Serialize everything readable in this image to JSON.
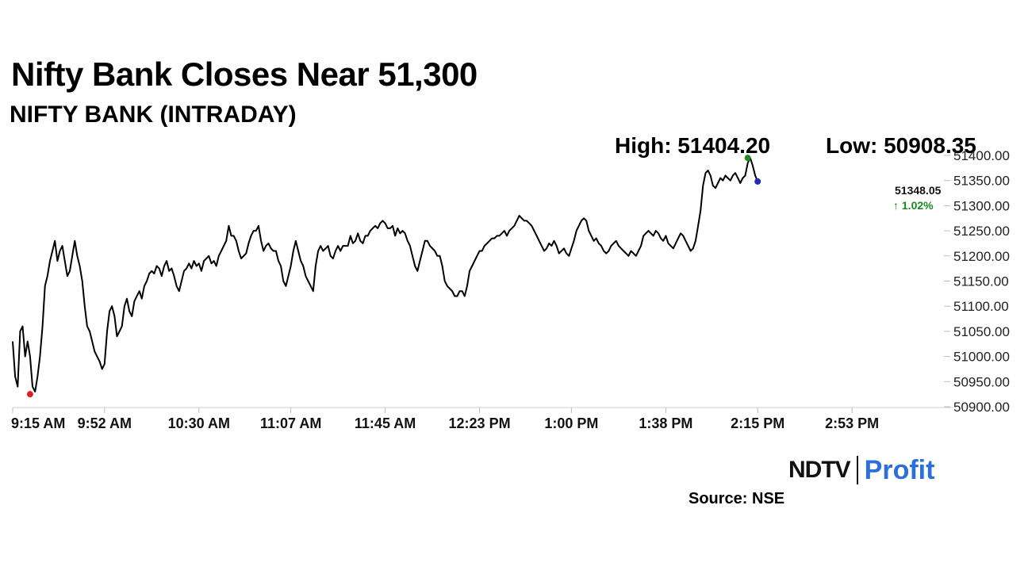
{
  "header": {
    "title": "Nifty Bank Closes Near 51,300",
    "subtitle": "NIFTY BANK (INTRADAY)"
  },
  "stats": {
    "high": "High: 51404.20",
    "low": "Low: 50908.35"
  },
  "last": {
    "value": "51348.05",
    "change": "↑ 1.02%"
  },
  "branding": {
    "logo_ndtv": "NDTV",
    "logo_profit": "Profit"
  },
  "source": "Source: NSE",
  "colors": {
    "line": "#000000",
    "low_marker": "#e02020",
    "high_marker": "#1a8a1a",
    "last_marker": "#1f2fb0",
    "change_up": "#1a8a1a",
    "logo_profit": "#2a6fdb"
  },
  "chart_data": {
    "type": "line",
    "title": "NIFTY BANK (INTRADAY)",
    "xlabel": "",
    "ylabel": "",
    "ylim": [
      50900,
      51400
    ],
    "y_ticks": [
      50900,
      50950,
      51000,
      51050,
      51100,
      51150,
      51200,
      51250,
      51300,
      51350,
      51400
    ],
    "y_tick_labels": [
      "50900.00",
      "50950.00",
      "51000.00",
      "51050.00",
      "51100.00",
      "51150.00",
      "51200.00",
      "51250.00",
      "51300.00",
      "51350.00",
      "51400.00"
    ],
    "x_tick_labels": [
      "9:15 AM",
      "9:52 AM",
      "10:30 AM",
      "11:07 AM",
      "11:45 AM",
      "12:23 PM",
      "1:00 PM",
      "1:38 PM",
      "2:15 PM",
      "2:53 PM"
    ],
    "x_tick_minutes": [
      0,
      37,
      75,
      112,
      150,
      188,
      225,
      263,
      300,
      338
    ],
    "x_range_minutes": [
      0,
      375
    ],
    "grid": false,
    "series": [
      {
        "values": [
          [
            0,
            51030
          ],
          [
            1,
            50960
          ],
          [
            2,
            50940
          ],
          [
            3,
            51050
          ],
          [
            4,
            51060
          ],
          [
            5,
            51000
          ],
          [
            6,
            51030
          ],
          [
            7,
            51000
          ],
          [
            8,
            50940
          ],
          [
            9,
            50930
          ],
          [
            10,
            50960
          ],
          [
            11,
            51000
          ],
          [
            12,
            51060
          ],
          [
            13,
            51140
          ],
          [
            14,
            51160
          ],
          [
            15,
            51190
          ],
          [
            16,
            51210
          ],
          [
            17,
            51230
          ],
          [
            18,
            51190
          ],
          [
            19,
            51210
          ],
          [
            20,
            51220
          ],
          [
            21,
            51190
          ],
          [
            22,
            51160
          ],
          [
            23,
            51170
          ],
          [
            24,
            51200
          ],
          [
            25,
            51230
          ],
          [
            26,
            51200
          ],
          [
            27,
            51180
          ],
          [
            28,
            51150
          ],
          [
            29,
            51100
          ],
          [
            30,
            51060
          ],
          [
            31,
            51050
          ],
          [
            32,
            51030
          ],
          [
            33,
            51010
          ],
          [
            34,
            51000
          ],
          [
            35,
            50990
          ],
          [
            36,
            50975
          ],
          [
            37,
            50985
          ],
          [
            38,
            51050
          ],
          [
            39,
            51090
          ],
          [
            40,
            51100
          ],
          [
            41,
            51080
          ],
          [
            42,
            51040
          ],
          [
            43,
            51050
          ],
          [
            44,
            51060
          ],
          [
            45,
            51100
          ],
          [
            46,
            51115
          ],
          [
            47,
            51090
          ],
          [
            48,
            51080
          ],
          [
            49,
            51110
          ],
          [
            50,
            51120
          ],
          [
            51,
            51130
          ],
          [
            52,
            51115
          ],
          [
            53,
            51140
          ],
          [
            54,
            51150
          ],
          [
            55,
            51165
          ],
          [
            56,
            51170
          ],
          [
            57,
            51165
          ],
          [
            58,
            51180
          ],
          [
            59,
            51175
          ],
          [
            60,
            51160
          ],
          [
            61,
            51180
          ],
          [
            62,
            51190
          ],
          [
            63,
            51170
          ],
          [
            64,
            51175
          ],
          [
            65,
            51160
          ],
          [
            66,
            51140
          ],
          [
            67,
            51130
          ],
          [
            68,
            51150
          ],
          [
            69,
            51170
          ],
          [
            70,
            51175
          ],
          [
            71,
            51185
          ],
          [
            72,
            51175
          ],
          [
            73,
            51190
          ],
          [
            74,
            51180
          ],
          [
            75,
            51185
          ],
          [
            76,
            51170
          ],
          [
            77,
            51190
          ],
          [
            78,
            51195
          ],
          [
            79,
            51200
          ],
          [
            80,
            51185
          ],
          [
            81,
            51190
          ],
          [
            82,
            51180
          ],
          [
            83,
            51200
          ],
          [
            84,
            51210
          ],
          [
            85,
            51220
          ],
          [
            86,
            51230
          ],
          [
            87,
            51260
          ],
          [
            88,
            51240
          ],
          [
            89,
            51240
          ],
          [
            90,
            51230
          ],
          [
            91,
            51210
          ],
          [
            92,
            51195
          ],
          [
            93,
            51200
          ],
          [
            94,
            51205
          ],
          [
            95,
            51225
          ],
          [
            96,
            51240
          ],
          [
            97,
            51250
          ],
          [
            98,
            51250
          ],
          [
            99,
            51260
          ],
          [
            100,
            51230
          ],
          [
            101,
            51210
          ],
          [
            102,
            51220
          ],
          [
            103,
            51225
          ],
          [
            104,
            51215
          ],
          [
            105,
            51210
          ],
          [
            106,
            51210
          ],
          [
            107,
            51190
          ],
          [
            108,
            51180
          ],
          [
            109,
            51150
          ],
          [
            110,
            51140
          ],
          [
            111,
            51160
          ],
          [
            112,
            51180
          ],
          [
            113,
            51210
          ],
          [
            114,
            51230
          ],
          [
            115,
            51210
          ],
          [
            116,
            51190
          ],
          [
            117,
            51180
          ],
          [
            118,
            51160
          ],
          [
            119,
            51150
          ],
          [
            120,
            51140
          ],
          [
            121,
            51130
          ],
          [
            122,
            51180
          ],
          [
            123,
            51210
          ],
          [
            124,
            51220
          ],
          [
            125,
            51210
          ],
          [
            126,
            51215
          ],
          [
            127,
            51220
          ],
          [
            128,
            51200
          ],
          [
            129,
            51195
          ],
          [
            130,
            51210
          ],
          [
            131,
            51220
          ],
          [
            132,
            51210
          ],
          [
            133,
            51220
          ],
          [
            134,
            51220
          ],
          [
            135,
            51220
          ],
          [
            136,
            51240
          ],
          [
            137,
            51225
          ],
          [
            138,
            51230
          ],
          [
            139,
            51245
          ],
          [
            140,
            51230
          ],
          [
            141,
            51225
          ],
          [
            142,
            51240
          ],
          [
            143,
            51240
          ],
          [
            144,
            51250
          ],
          [
            145,
            51255
          ],
          [
            146,
            51260
          ],
          [
            147,
            51255
          ],
          [
            148,
            51265
          ],
          [
            149,
            51270
          ],
          [
            150,
            51265
          ],
          [
            151,
            51255
          ],
          [
            152,
            51255
          ],
          [
            153,
            51260
          ],
          [
            154,
            51240
          ],
          [
            155,
            51255
          ],
          [
            156,
            51245
          ],
          [
            157,
            51250
          ],
          [
            158,
            51245
          ],
          [
            159,
            51230
          ],
          [
            160,
            51220
          ],
          [
            161,
            51200
          ],
          [
            162,
            51180
          ],
          [
            163,
            51170
          ],
          [
            164,
            51190
          ],
          [
            165,
            51210
          ],
          [
            166,
            51230
          ],
          [
            167,
            51230
          ],
          [
            168,
            51220
          ],
          [
            169,
            51215
          ],
          [
            170,
            51210
          ],
          [
            171,
            51200
          ],
          [
            172,
            51200
          ],
          [
            173,
            51180
          ],
          [
            174,
            51150
          ],
          [
            175,
            51140
          ],
          [
            176,
            51135
          ],
          [
            177,
            51130
          ],
          [
            178,
            51120
          ],
          [
            179,
            51120
          ],
          [
            180,
            51130
          ],
          [
            181,
            51130
          ],
          [
            182,
            51120
          ],
          [
            183,
            51140
          ],
          [
            184,
            51170
          ],
          [
            185,
            51180
          ],
          [
            186,
            51190
          ],
          [
            187,
            51200
          ],
          [
            188,
            51210
          ],
          [
            189,
            51210
          ],
          [
            190,
            51220
          ],
          [
            191,
            51225
          ],
          [
            192,
            51230
          ],
          [
            193,
            51235
          ],
          [
            194,
            51235
          ],
          [
            195,
            51240
          ],
          [
            196,
            51240
          ],
          [
            197,
            51245
          ],
          [
            198,
            51250
          ],
          [
            199,
            51240
          ],
          [
            200,
            51250
          ],
          [
            201,
            51255
          ],
          [
            202,
            51260
          ],
          [
            203,
            51270
          ],
          [
            204,
            51280
          ],
          [
            205,
            51275
          ],
          [
            206,
            51270
          ],
          [
            207,
            51270
          ],
          [
            208,
            51265
          ],
          [
            209,
            51260
          ],
          [
            210,
            51250
          ],
          [
            211,
            51240
          ],
          [
            212,
            51230
          ],
          [
            213,
            51220
          ],
          [
            214,
            51210
          ],
          [
            215,
            51215
          ],
          [
            216,
            51225
          ],
          [
            217,
            51220
          ],
          [
            218,
            51230
          ],
          [
            219,
            51220
          ],
          [
            220,
            51205
          ],
          [
            221,
            51210
          ],
          [
            222,
            51215
          ],
          [
            223,
            51205
          ],
          [
            224,
            51200
          ],
          [
            225,
            51215
          ],
          [
            226,
            51230
          ],
          [
            227,
            51250
          ],
          [
            228,
            51260
          ],
          [
            229,
            51270
          ],
          [
            230,
            51275
          ],
          [
            231,
            51270
          ],
          [
            232,
            51250
          ],
          [
            233,
            51240
          ],
          [
            234,
            51230
          ],
          [
            235,
            51235
          ],
          [
            236,
            51225
          ],
          [
            237,
            51220
          ],
          [
            238,
            51210
          ],
          [
            239,
            51205
          ],
          [
            240,
            51210
          ],
          [
            241,
            51220
          ],
          [
            242,
            51225
          ],
          [
            243,
            51230
          ],
          [
            244,
            51220
          ],
          [
            245,
            51215
          ],
          [
            246,
            51210
          ],
          [
            247,
            51205
          ],
          [
            248,
            51200
          ],
          [
            249,
            51210
          ],
          [
            250,
            51205
          ],
          [
            251,
            51200
          ],
          [
            252,
            51210
          ],
          [
            253,
            51220
          ],
          [
            254,
            51240
          ],
          [
            255,
            51245
          ],
          [
            256,
            51250
          ],
          [
            257,
            51245
          ],
          [
            258,
            51240
          ],
          [
            259,
            51250
          ],
          [
            260,
            51245
          ],
          [
            261,
            51235
          ],
          [
            262,
            51230
          ],
          [
            263,
            51240
          ],
          [
            264,
            51225
          ],
          [
            265,
            51220
          ],
          [
            266,
            51215
          ],
          [
            267,
            51225
          ],
          [
            268,
            51235
          ],
          [
            269,
            51245
          ],
          [
            270,
            51240
          ],
          [
            271,
            51230
          ],
          [
            272,
            51220
          ],
          [
            273,
            51210
          ],
          [
            274,
            51215
          ],
          [
            275,
            51230
          ],
          [
            276,
            51260
          ],
          [
            277,
            51290
          ],
          [
            278,
            51340
          ],
          [
            279,
            51365
          ],
          [
            280,
            51370
          ],
          [
            281,
            51360
          ],
          [
            282,
            51340
          ],
          [
            283,
            51335
          ],
          [
            284,
            51345
          ],
          [
            285,
            51355
          ],
          [
            286,
            51350
          ],
          [
            287,
            51360
          ],
          [
            288,
            51355
          ],
          [
            289,
            51350
          ],
          [
            290,
            51360
          ],
          [
            291,
            51365
          ],
          [
            292,
            51355
          ],
          [
            293,
            51345
          ],
          [
            294,
            51355
          ],
          [
            295,
            51360
          ],
          [
            296,
            51385
          ],
          [
            297,
            51395
          ],
          [
            298,
            51380
          ],
          [
            299,
            51360
          ],
          [
            300,
            51348
          ]
        ]
      }
    ],
    "annotations": {
      "low_minutes": 7,
      "low_value": 50925,
      "high_minutes": 296,
      "high_value": 51395,
      "last_minutes": 300,
      "last_value": 51348.05
    }
  }
}
